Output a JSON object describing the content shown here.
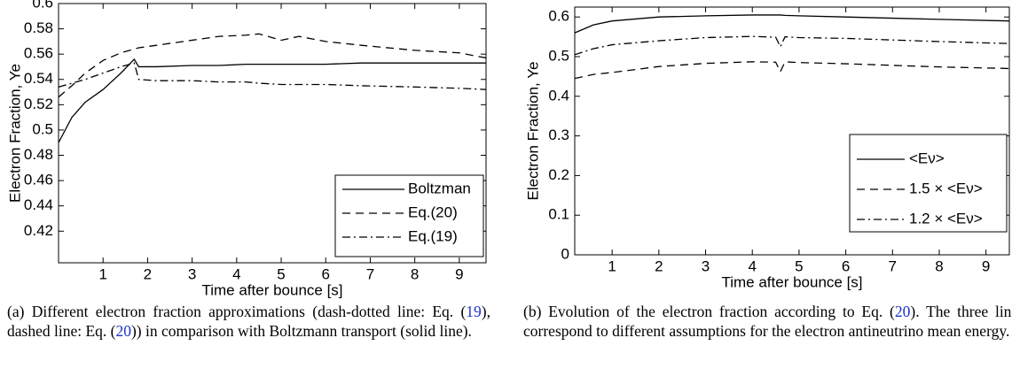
{
  "chart_data": [
    {
      "type": "line",
      "xlabel": "Time after bounce [s]",
      "ylabel": "Electron Fraction, Ye",
      "xlim": [
        0,
        9.6
      ],
      "ylim": [
        0.395,
        0.6
      ],
      "xticks": [
        1,
        2,
        3,
        4,
        5,
        6,
        7,
        8,
        9
      ],
      "yticks": [
        0.42,
        0.44,
        0.46,
        0.48,
        0.5,
        0.52,
        0.54,
        0.56,
        0.58,
        0.6
      ],
      "x": [
        0,
        0.3,
        0.6,
        1,
        1.4,
        1.7,
        1.8,
        2.2,
        3,
        3.6,
        4.2,
        4.5,
        5,
        5.4,
        6,
        6.8,
        8,
        9,
        9.6
      ],
      "series": [
        {
          "name": "Boltzman",
          "color": "#000000",
          "style": "solid",
          "values": [
            0.49,
            0.51,
            0.522,
            0.532,
            0.545,
            0.556,
            0.55,
            0.55,
            0.551,
            0.551,
            0.552,
            0.552,
            0.552,
            0.552,
            0.552,
            0.553,
            0.553,
            0.553,
            0.553
          ]
        },
        {
          "name": "Eq.(20)",
          "color": "#000000",
          "style": "dashed",
          "values": [
            0.526,
            0.535,
            0.545,
            0.555,
            0.561,
            0.564,
            0.565,
            0.567,
            0.571,
            0.574,
            0.575,
            0.576,
            0.571,
            0.574,
            0.57,
            0.567,
            0.563,
            0.561,
            0.557
          ]
        },
        {
          "name": "Eq.(19)",
          "color": "#000000",
          "style": "dashdot",
          "values": [
            0.534,
            0.537,
            0.54,
            0.545,
            0.55,
            0.553,
            0.54,
            0.539,
            0.539,
            0.538,
            0.538,
            0.537,
            0.536,
            0.536,
            0.536,
            0.535,
            0.534,
            0.533,
            0.532
          ]
        }
      ],
      "legend": "lower right",
      "caption": [
        "(a) Different electron fraction approximations (dash-dotted line: Eq. (",
        {
          "ref": "19"
        },
        "), dashed line: Eq. (",
        {
          "ref": "20"
        },
        ")) in comparison with Boltzmann transport (solid line)."
      ]
    },
    {
      "type": "line",
      "xlabel": "Time after bounce [s]",
      "ylabel": "Electron Fraction, Ye",
      "xlim": [
        0.2,
        9.5
      ],
      "ylim": [
        0,
        0.625
      ],
      "xticks": [
        1,
        2,
        3,
        4,
        5,
        6,
        7,
        8,
        9
      ],
      "yticks": [
        0,
        0.1,
        0.2,
        0.3,
        0.4,
        0.5,
        0.6
      ],
      "x": [
        0.2,
        0.6,
        1,
        2,
        3,
        4,
        4.5,
        4.6,
        4.7,
        5,
        6,
        7,
        8,
        9.5
      ],
      "series": [
        {
          "name": "<Eν>",
          "color": "#000000",
          "style": "solid",
          "values": [
            0.56,
            0.58,
            0.59,
            0.6,
            0.603,
            0.605,
            0.605,
            0.605,
            0.604,
            0.603,
            0.6,
            0.597,
            0.594,
            0.59
          ]
        },
        {
          "name": "1.5 × <Eν>",
          "color": "#000000",
          "style": "dashed",
          "values": [
            0.445,
            0.455,
            0.46,
            0.475,
            0.483,
            0.487,
            0.486,
            0.462,
            0.487,
            0.485,
            0.482,
            0.478,
            0.474,
            0.47
          ]
        },
        {
          "name": "1.2 × <Eν>",
          "color": "#000000",
          "style": "dashdot",
          "values": [
            0.505,
            0.52,
            0.53,
            0.54,
            0.548,
            0.551,
            0.549,
            0.525,
            0.55,
            0.548,
            0.546,
            0.542,
            0.538,
            0.533
          ]
        }
      ],
      "legend": "lower right",
      "caption": [
        "(b) Evolution of the electron fraction according to Eq. (",
        {
          "ref": "20"
        },
        "). The three lines correspond to different assumptions for the electron antineutrino mean energy."
      ]
    }
  ]
}
